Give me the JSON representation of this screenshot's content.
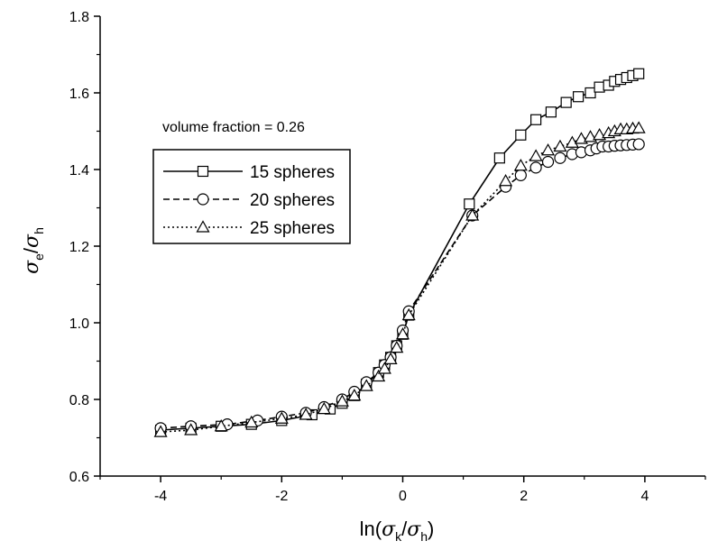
{
  "chart_data": {
    "type": "line",
    "annotation": "volume fraction = 0.26",
    "xlim": [
      -5,
      5
    ],
    "ylim": [
      0.6,
      1.8
    ],
    "x_ticks": [
      "-4",
      "-2",
      "0",
      "2",
      "4"
    ],
    "y_ticks": [
      "0.6",
      "0.8",
      "1.0",
      "1.2",
      "1.4",
      "1.6",
      "1.8"
    ],
    "grid": false,
    "legend_position": "left, below annotation",
    "series": [
      {
        "name": "15 spheres",
        "marker": "square",
        "line": "solid",
        "x": [
          -4.0,
          -3.5,
          -3.0,
          -2.5,
          -2.0,
          -1.5,
          -1.2,
          -1.0,
          -0.8,
          -0.6,
          -0.4,
          -0.3,
          -0.2,
          -0.1,
          0.0,
          0.1,
          1.1,
          1.6,
          1.95,
          2.2,
          2.45,
          2.7,
          2.9,
          3.1,
          3.25,
          3.4,
          3.5,
          3.6,
          3.7,
          3.8,
          3.9
        ],
        "y": [
          0.72,
          0.725,
          0.73,
          0.735,
          0.745,
          0.76,
          0.775,
          0.79,
          0.81,
          0.84,
          0.87,
          0.89,
          0.91,
          0.94,
          0.97,
          1.02,
          1.31,
          1.43,
          1.49,
          1.53,
          1.55,
          1.575,
          1.59,
          1.6,
          1.615,
          1.62,
          1.63,
          1.635,
          1.64,
          1.645,
          1.65
        ]
      },
      {
        "name": "20 spheres",
        "marker": "circle",
        "line": "dashed",
        "x": [
          -4.0,
          -3.5,
          -2.9,
          -2.4,
          -2.0,
          -1.6,
          -1.3,
          -1.0,
          -0.8,
          -0.6,
          -0.4,
          -0.3,
          -0.2,
          -0.1,
          0.0,
          0.1,
          1.15,
          1.7,
          1.95,
          2.2,
          2.4,
          2.6,
          2.8,
          2.95,
          3.1,
          3.2,
          3.3,
          3.4,
          3.5,
          3.6,
          3.7,
          3.8,
          3.9
        ],
        "y": [
          0.725,
          0.73,
          0.735,
          0.745,
          0.755,
          0.765,
          0.78,
          0.8,
          0.82,
          0.845,
          0.87,
          0.89,
          0.91,
          0.94,
          0.98,
          1.03,
          1.28,
          1.355,
          1.385,
          1.405,
          1.42,
          1.43,
          1.44,
          1.445,
          1.45,
          1.455,
          1.46,
          1.46,
          1.462,
          1.463,
          1.464,
          1.465,
          1.466
        ]
      },
      {
        "name": "25 spheres",
        "marker": "triangle",
        "line": "dotted",
        "x": [
          -4.0,
          -3.5,
          -3.0,
          -2.5,
          -2.0,
          -1.6,
          -1.3,
          -1.0,
          -0.8,
          -0.6,
          -0.4,
          -0.3,
          -0.2,
          -0.1,
          0.0,
          0.1,
          1.15,
          1.7,
          1.95,
          2.2,
          2.4,
          2.6,
          2.8,
          2.95,
          3.1,
          3.25,
          3.4,
          3.5,
          3.6,
          3.7,
          3.8,
          3.9
        ],
        "y": [
          0.715,
          0.72,
          0.73,
          0.74,
          0.75,
          0.76,
          0.775,
          0.795,
          0.81,
          0.835,
          0.86,
          0.88,
          0.905,
          0.935,
          0.97,
          1.02,
          1.28,
          1.37,
          1.41,
          1.435,
          1.45,
          1.46,
          1.47,
          1.48,
          1.485,
          1.49,
          1.495,
          1.5,
          1.505,
          1.505,
          1.507,
          1.508
        ]
      }
    ]
  }
}
